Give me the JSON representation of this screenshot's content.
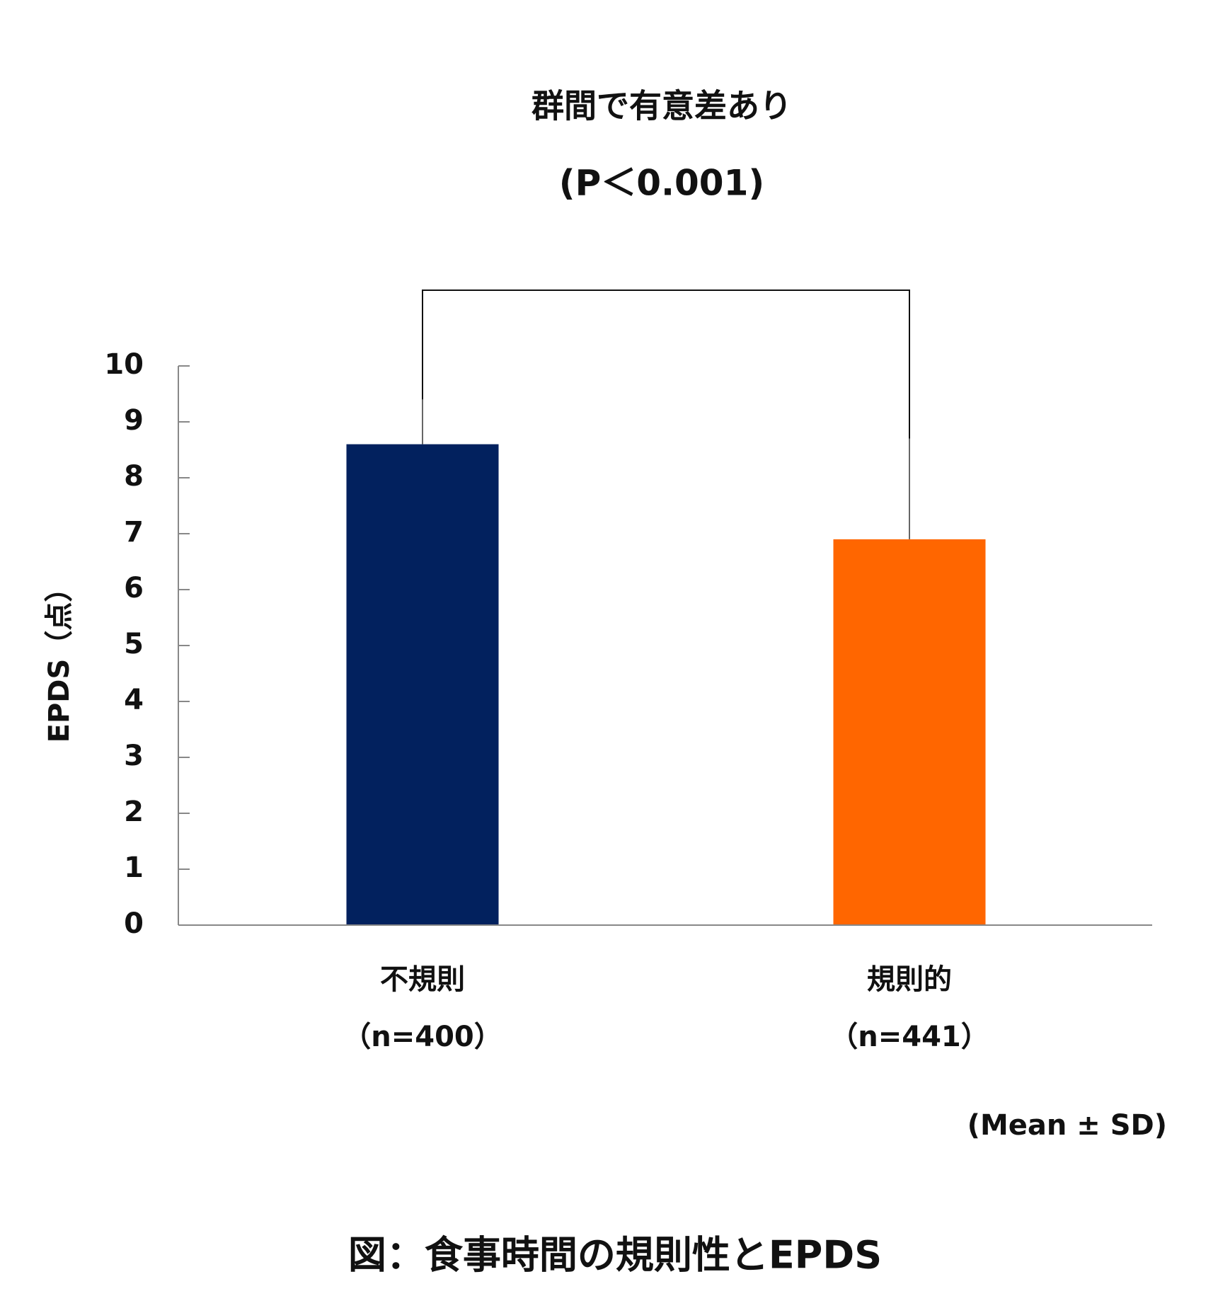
{
  "chart_data": {
    "type": "bar",
    "title": "群間で有意差あり",
    "subtitle": "(P＜0.001)",
    "ylabel": "EPDS（点）",
    "categories": [
      "不規則",
      "規則的"
    ],
    "category_sublabels": [
      "（n=400）",
      "（n=441）"
    ],
    "values": [
      8.6,
      6.9
    ],
    "errors": [
      0.8,
      1.8
    ],
    "colors": [
      "#02215e",
      "#ff6600"
    ],
    "ylim": [
      0,
      10
    ],
    "yticks": [
      0,
      1,
      2,
      3,
      4,
      5,
      6,
      7,
      8,
      9,
      10
    ],
    "note": "(Mean ± SD)",
    "caption": "図：食事時間の規則性とEPDS"
  }
}
